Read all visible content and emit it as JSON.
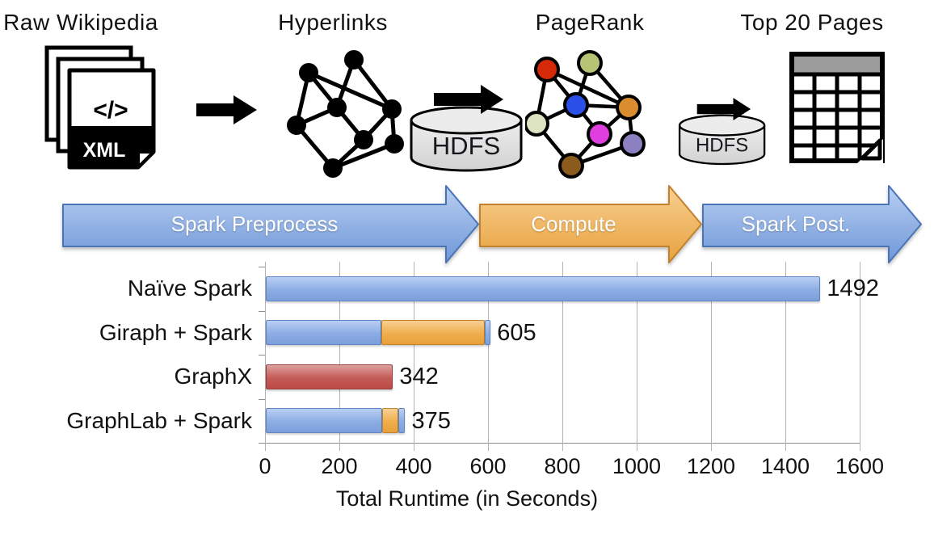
{
  "pipeline": {
    "stages": [
      {
        "label": "Raw Wikipedia",
        "icon": "xml-document-stack-icon"
      },
      {
        "label": "Hyperlinks",
        "icon": "black-graph-network-icon"
      },
      {
        "label": "PageRank",
        "icon": "colored-graph-network-icon"
      },
      {
        "label": "Top 20 Pages",
        "icon": "table-grid-icon"
      }
    ],
    "xml_icon": {
      "code_text": "</>",
      "badge": "XML"
    },
    "hdfs": [
      {
        "label": "HDFS"
      },
      {
        "label": "HDFS"
      }
    ]
  },
  "process_arrows": [
    {
      "label": "Spark Preprocess",
      "color": "#7d9fd9"
    },
    {
      "label": "Compute",
      "color": "#eeb25c"
    },
    {
      "label": "Spark Post.",
      "color": "#7d9fd9"
    }
  ],
  "chart_data": {
    "type": "bar",
    "orientation": "horizontal",
    "xlabel": "Total Runtime (in Seconds)",
    "xlim": [
      0,
      1600
    ],
    "xticks": [
      0,
      200,
      400,
      600,
      800,
      1000,
      1200,
      1400,
      1600
    ],
    "grid": true,
    "categories": [
      "Naïve Spark",
      "Giraph + Spark",
      "GraphX",
      "GraphLab + Spark"
    ],
    "totals": [
      1492,
      605,
      342,
      375
    ],
    "bar_labels": [
      "1492",
      "605",
      "342",
      "375"
    ],
    "legend": "none",
    "colors": {
      "blue": "#8cade4",
      "orange": "#efae4d",
      "red": "#c45b57"
    },
    "rows": [
      {
        "category": "Naïve Spark",
        "total": 1492,
        "label": "1492",
        "segments": [
          {
            "name": "spark",
            "color": "blue",
            "value": 1492
          }
        ]
      },
      {
        "category": "Giraph + Spark",
        "total": 605,
        "label": "605",
        "segments": [
          {
            "name": "spark-preprocess",
            "color": "blue",
            "value": 310
          },
          {
            "name": "giraph-compute",
            "color": "orange",
            "value": 280
          },
          {
            "name": "spark-post",
            "color": "blue",
            "value": 15
          }
        ]
      },
      {
        "category": "GraphX",
        "total": 342,
        "label": "342",
        "segments": [
          {
            "name": "graphx",
            "color": "red",
            "value": 342
          }
        ]
      },
      {
        "category": "GraphLab + Spark",
        "total": 375,
        "label": "375",
        "segments": [
          {
            "name": "spark-preprocess",
            "color": "blue",
            "value": 313
          },
          {
            "name": "graphlab-compute",
            "color": "orange",
            "value": 44
          },
          {
            "name": "spark-post",
            "color": "blue",
            "value": 18
          }
        ]
      }
    ]
  }
}
